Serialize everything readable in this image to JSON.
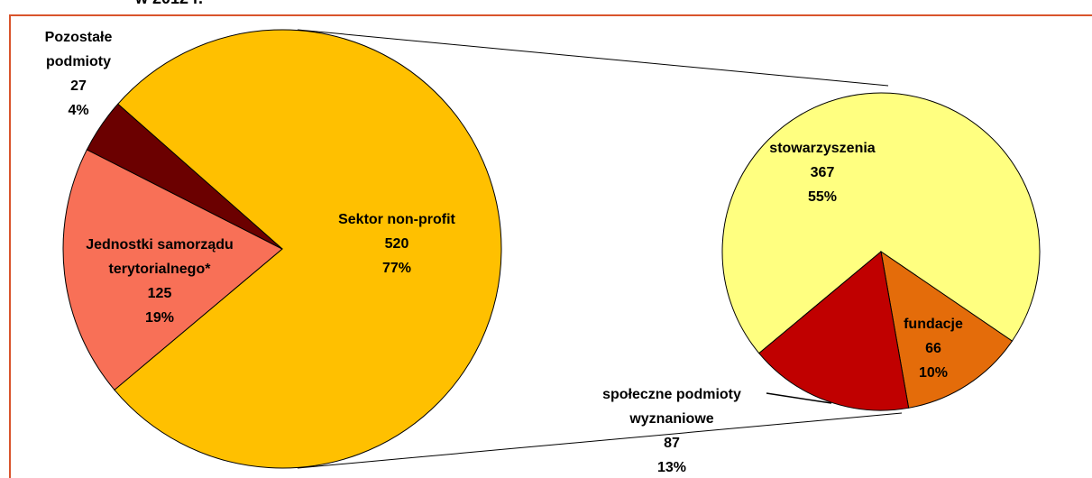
{
  "chart_data": [
    {
      "type": "pie",
      "title": "w 2012 r.",
      "categories": [
        "Sektor non-profit",
        "Jednostki samorządu terytorialnego*",
        "Pozostałe podmioty"
      ],
      "values": [
        520,
        125,
        27
      ],
      "percents": [
        77,
        19,
        4
      ],
      "percent_labels": [
        "77%",
        "19%",
        "4%"
      ],
      "colors": [
        "#ffc000",
        "#f87057",
        "#6b0000"
      ]
    },
    {
      "type": "pie",
      "categories": [
        "stowarzyszenia",
        "fundacje",
        "społeczne podmioty wyznaniowe"
      ],
      "values": [
        367,
        66,
        87
      ],
      "percents": [
        55,
        10,
        13
      ],
      "percent_labels": [
        "55%",
        "10%",
        "13%"
      ],
      "colors": [
        "#ffff80",
        "#e46c0a",
        "#c00000"
      ]
    }
  ]
}
